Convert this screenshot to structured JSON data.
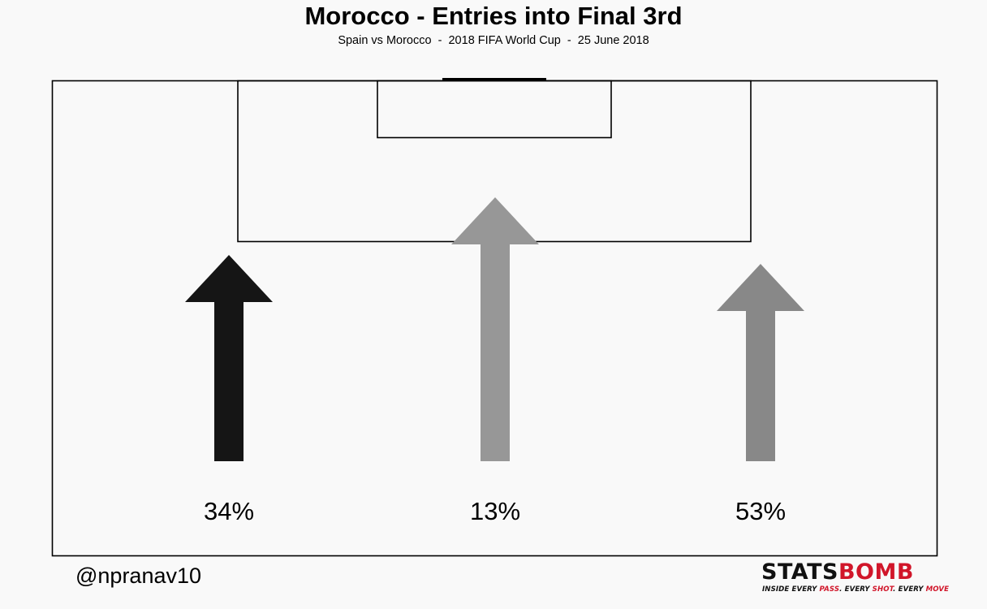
{
  "title": "Morocco - Entries into Final 3rd",
  "subtitle": "Spain vs Morocco  -  2018 FIFA World Cup  -  25 June 2018",
  "credit": "@npranav10",
  "logo": {
    "part1": "STATS",
    "part2": "BOMB",
    "tagline_parts": [
      "INSIDE EVERY ",
      "PASS",
      ". EVERY ",
      "SHOT",
      ". EVERY ",
      "MOVE"
    ]
  },
  "colors": {
    "background": "#f9f9f9",
    "lines": "#000000",
    "accent": "#d1162a"
  },
  "chart_data": {
    "type": "bar",
    "categories": [
      "left channel",
      "central channel",
      "right channel"
    ],
    "values": [
      34,
      13,
      53
    ],
    "value_labels": [
      "34%",
      "13%",
      "53%"
    ],
    "unit": "%",
    "arrow_colors": [
      "#151515",
      "#979797",
      "#888888"
    ]
  }
}
